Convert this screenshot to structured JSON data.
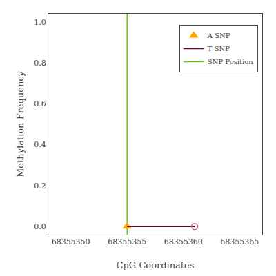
{
  "chart_data": {
    "type": "line",
    "xlabel": "CpG Coordinates",
    "ylabel": "Methylation Frequency",
    "xlim": [
      68355348,
      68355367
    ],
    "ylim": [
      -0.04,
      1.04
    ],
    "xticks": [
      68355350,
      68355355,
      68355360,
      68355365
    ],
    "yticks": [
      {
        "value": 0.0,
        "label": "0.0"
      },
      0.2,
      0.4,
      0.6,
      0.8,
      {
        "value": 1.0,
        "label": "1.0"
      }
    ],
    "grid": false,
    "legend": "upper right",
    "series": [
      {
        "name": "A SNP",
        "type": "scatter",
        "marker": "triangle-up",
        "color": "#FFA500",
        "x": [
          68355355
        ],
        "values": [
          0.0
        ]
      },
      {
        "name": "T SNP",
        "type": "line",
        "line_style": "solid",
        "color": "#660033",
        "x": [
          68355355,
          68355361
        ],
        "values": [
          0.0,
          0.0
        ]
      },
      {
        "type": "scatter",
        "marker": "circle-open",
        "color": "#cc6688",
        "x": [
          68355361
        ],
        "values": [
          0.0
        ]
      },
      {
        "name": "SNP Position",
        "type": "vline",
        "line_style": "solid",
        "color": "#66cc00",
        "x": [
          68355355
        ]
      }
    ]
  }
}
